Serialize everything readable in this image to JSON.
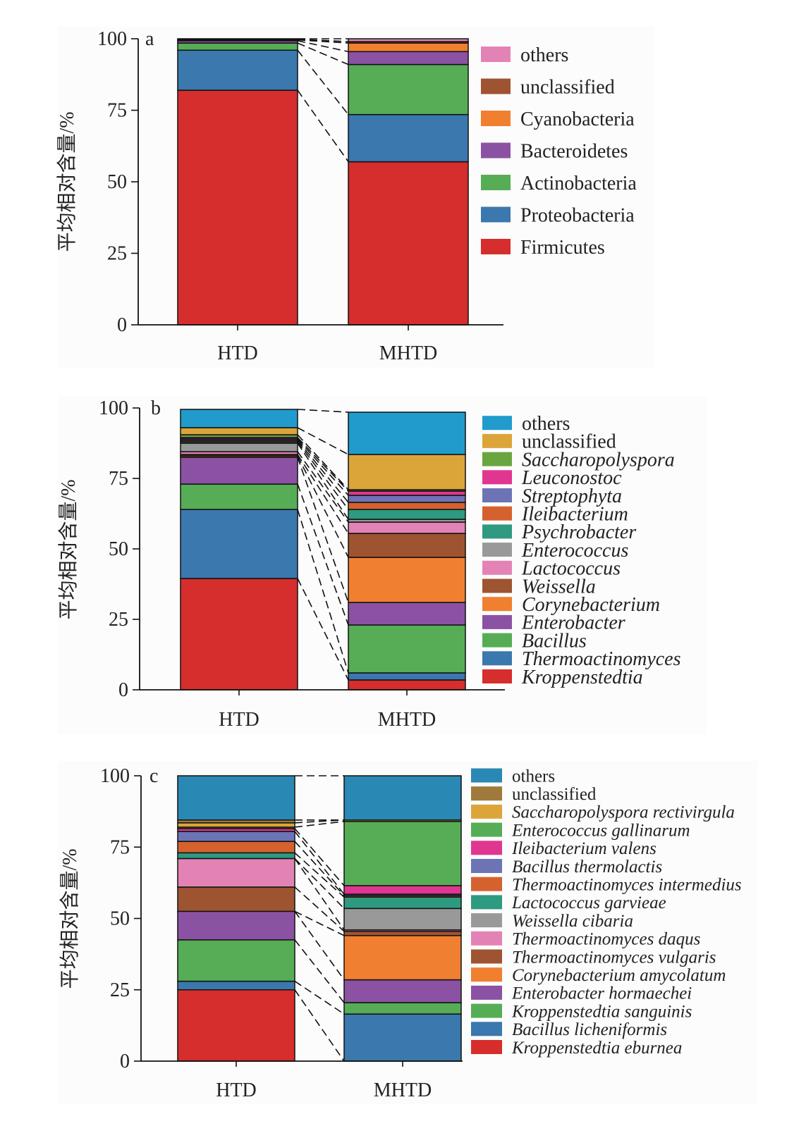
{
  "chart_data": [
    {
      "type": "bar",
      "stacked": true,
      "panel_label": "a",
      "categories": [
        "HTD",
        "MHTD"
      ],
      "ylabel": "平均相对含量/%",
      "ylim": [
        0,
        100
      ],
      "yticks": [
        "0",
        "25",
        "50",
        "75",
        "100"
      ],
      "series": [
        {
          "name": "Firmicutes",
          "color": "#d62d2d",
          "italic": false,
          "values": [
            82,
            57
          ]
        },
        {
          "name": "Proteobacteria",
          "color": "#3a78ae",
          "italic": false,
          "values": [
            14,
            16.5
          ]
        },
        {
          "name": "Actinobacteria",
          "color": "#56ad56",
          "italic": false,
          "values": [
            2.5,
            17.5
          ]
        },
        {
          "name": "Bacteroidetes",
          "color": "#8b52a3",
          "italic": false,
          "values": [
            0.8,
            4.5
          ]
        },
        {
          "name": "Cyanobacteria",
          "color": "#f07f30",
          "italic": false,
          "values": [
            0.3,
            3
          ]
        },
        {
          "name": "unclassified",
          "color": "#9e5430",
          "italic": false,
          "values": [
            0.2,
            0.5
          ]
        },
        {
          "name": "others",
          "color": "#e383b5",
          "italic": false,
          "values": [
            0.2,
            1
          ]
        }
      ]
    },
    {
      "type": "bar",
      "stacked": true,
      "panel_label": "b",
      "categories": [
        "HTD",
        "MHTD"
      ],
      "ylabel": "平均相对含量/%",
      "ylim": [
        0,
        100
      ],
      "yticks": [
        "0",
        "25",
        "50",
        "75",
        "100"
      ],
      "series": [
        {
          "name": "Kroppenstedtia",
          "color": "#d62d2d",
          "italic": true,
          "values": [
            39.5,
            3.5
          ]
        },
        {
          "name": "Thermoactinomyces",
          "color": "#3a78ae",
          "italic": true,
          "values": [
            24.5,
            2.5
          ]
        },
        {
          "name": "Bacillus",
          "color": "#56ad56",
          "italic": true,
          "values": [
            9,
            17
          ]
        },
        {
          "name": "Enterobacter",
          "color": "#8b52a3",
          "italic": true,
          "values": [
            9.5,
            8
          ]
        },
        {
          "name": "Corynebacterium",
          "color": "#f07f30",
          "italic": true,
          "values": [
            0.5,
            16
          ]
        },
        {
          "name": "Weissella",
          "color": "#9e5430",
          "italic": true,
          "values": [
            0.5,
            8.5
          ]
        },
        {
          "name": "Lactococcus",
          "color": "#e383b5",
          "italic": true,
          "values": [
            1,
            4
          ]
        },
        {
          "name": "Enterococcus",
          "color": "#999999",
          "italic": true,
          "values": [
            3,
            1
          ]
        },
        {
          "name": "Psychrobacter",
          "color": "#2e9a80",
          "italic": true,
          "values": [
            0.5,
            3.5
          ]
        },
        {
          "name": "Ileibacterium",
          "color": "#d5622e",
          "italic": true,
          "values": [
            0.5,
            2.5
          ]
        },
        {
          "name": "Streptophyta",
          "color": "#6c74b5",
          "italic": true,
          "values": [
            0.5,
            2.5
          ]
        },
        {
          "name": "Leuconostoc",
          "color": "#e03690",
          "italic": true,
          "values": [
            0.5,
            1.5
          ]
        },
        {
          "name": "Saccharopolyspora",
          "color": "#6aa640",
          "italic": true,
          "values": [
            1,
            0.5
          ]
        },
        {
          "name": "unclassified",
          "color": "#dca53a",
          "italic": false,
          "values": [
            2.5,
            12.5
          ]
        },
        {
          "name": "others",
          "color": "#219bcc",
          "italic": false,
          "values": [
            6.5,
            15
          ]
        }
      ]
    },
    {
      "type": "bar",
      "stacked": true,
      "panel_label": "c",
      "categories": [
        "HTD",
        "MHTD"
      ],
      "ylabel": "平均相对含量/%",
      "ylim": [
        0,
        100
      ],
      "yticks": [
        "0",
        "25",
        "50",
        "75",
        "100"
      ],
      "series": [
        {
          "name": "Kroppenstedtia eburnea",
          "color": "#d62d2d",
          "italic": true,
          "values": [
            25,
            0
          ]
        },
        {
          "name": "Bacillus licheniformis",
          "color": "#3a78ae",
          "italic": true,
          "values": [
            3,
            16.5
          ]
        },
        {
          "name": "Kroppenstedtia sanguinis",
          "color": "#56ad56",
          "italic": true,
          "values": [
            14.5,
            4
          ]
        },
        {
          "name": "Enterobacter hormaechei",
          "color": "#8b52a3",
          "italic": true,
          "values": [
            10,
            8
          ]
        },
        {
          "name": "Corynebacterium amycolatum",
          "color": "#f07f30",
          "italic": true,
          "values": [
            0,
            15.5
          ]
        },
        {
          "name": "Thermoactinomyces vulgaris",
          "color": "#9e5430",
          "italic": true,
          "values": [
            8.5,
            1.5
          ]
        },
        {
          "name": "Thermoactinomyces daqus",
          "color": "#e383b5",
          "italic": true,
          "values": [
            10,
            0.5
          ]
        },
        {
          "name": "Weissella cibaria",
          "color": "#999999",
          "italic": true,
          "values": [
            0,
            7.5
          ]
        },
        {
          "name": "Lactococcus garvieae",
          "color": "#2e9a80",
          "italic": true,
          "values": [
            2,
            4
          ]
        },
        {
          "name": "Thermoactinomyces intermedius",
          "color": "#d5622e",
          "italic": true,
          "values": [
            4,
            0.5
          ]
        },
        {
          "name": "Bacillus thermolactis",
          "color": "#6c74b5",
          "italic": true,
          "values": [
            3.5,
            0.5
          ]
        },
        {
          "name": "Ileibacterium valens",
          "color": "#e03690",
          "italic": true,
          "values": [
            1,
            3
          ]
        },
        {
          "name": "Enterococcus gallinarum",
          "color": "#56ad56",
          "italic": true,
          "values": [
            0.5,
            22.5
          ]
        },
        {
          "name": "Saccharopolyspora rectivirgula",
          "color": "#dca53a",
          "italic": true,
          "values": [
            1.5,
            0.5
          ]
        },
        {
          "name": "unclassified",
          "color": "#a07a3c",
          "italic": false,
          "values": [
            1,
            0
          ]
        },
        {
          "name": "others",
          "color": "#2a88b4",
          "italic": false,
          "values": [
            15.5,
            15.5
          ]
        }
      ]
    }
  ]
}
